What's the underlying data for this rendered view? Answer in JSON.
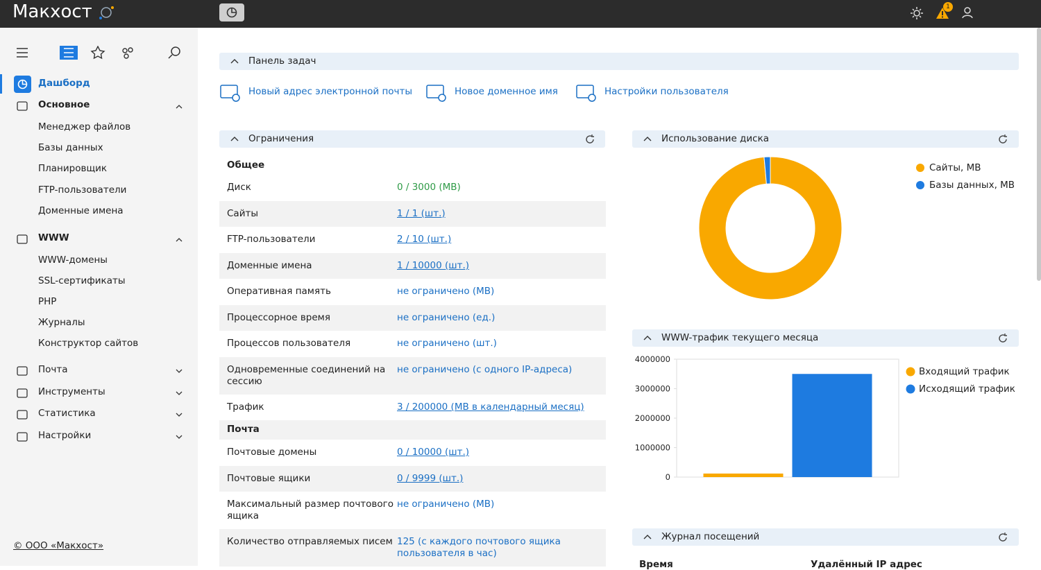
{
  "header": {
    "logo": "Макхост",
    "badge": 1
  },
  "sidebar": {
    "active": "Дашборд",
    "sections": [
      {
        "title": "Основное",
        "items": [
          "Менеджер файлов",
          "Базы данных",
          "Планировщик",
          "FTP-пользователи",
          "Доменные имена"
        ]
      },
      {
        "title": "WWW",
        "items": [
          "WWW-домены",
          "SSL-сертификаты",
          "PHP",
          "Журналы",
          "Конструктор сайтов"
        ]
      }
    ],
    "collapsed": [
      "Почта",
      "Инструменты",
      "Статистика",
      "Настройки"
    ],
    "footer": "© ООО «Макхост»"
  },
  "tasks": {
    "title": "Панель задач",
    "links": [
      "Новый адрес электронной почты",
      "Новое доменное имя",
      "Настройки пользователя"
    ]
  },
  "limits": {
    "title": "Ограничения",
    "value_color": "#1a6fc4",
    "groups": [
      {
        "title": "Общее",
        "rows": [
          {
            "label": "Диск",
            "value": "0 / 3000 (MB)",
            "color": "#2e9a46"
          },
          {
            "label": "Сайты",
            "value": "1 / 1 (шт.)",
            "link": true
          },
          {
            "label": "FTP-пользователи",
            "value": "2 / 10 (шт.)",
            "link": true
          },
          {
            "label": "Доменные имена",
            "value": "1 / 10000 (шт.)",
            "link": true
          },
          {
            "label": "Оперативная память",
            "value": "не ограничено (MB)"
          },
          {
            "label": "Процессорное время",
            "value": "не ограничено (ед.)"
          },
          {
            "label": "Процессов пользователя",
            "value": "не ограничено (шт.)"
          },
          {
            "label": "Одновременные соединений на сессию",
            "value": "не ограничено (с одного IP-адреса)"
          },
          {
            "label": "Трафик",
            "value": "3 / 200000 (MB в календарный месяц)",
            "link": true
          }
        ]
      },
      {
        "title": "Почта",
        "rows": [
          {
            "label": "Почтовые домены",
            "value": "0 / 10000 (шт.)",
            "link": true
          },
          {
            "label": "Почтовые ящики",
            "value": "0 / 9999 (шт.)",
            "link": true
          },
          {
            "label": "Максимальный размер почтового ящика",
            "value": "не ограничено (MB)"
          },
          {
            "label": "Количество отправляемых писем",
            "value": "125 (с каждого почтового ящика пользователя в час)"
          }
        ]
      }
    ]
  },
  "chart_data": [
    {
      "type": "pie",
      "donut": true,
      "title": "Использование диска",
      "categories": [
        "Сайты, MB",
        "Базы данных, MB"
      ],
      "values": [
        98.6,
        1.4
      ],
      "colors": [
        "#f9a800",
        "#1e7be0"
      ],
      "legend": "right"
    },
    {
      "type": "bar",
      "title": "WWW-трафик текущего месяца",
      "categories": [
        null
      ],
      "series": [
        {
          "name": "Входящий трафик",
          "color": "#f9a800",
          "values": [
            120000
          ]
        },
        {
          "name": "Исходящий трафик",
          "color": "#1e7be0",
          "values": [
            3500000
          ]
        }
      ],
      "ylim": [
        0,
        4000000
      ],
      "yticks": [
        0,
        1000000,
        2000000,
        3000000,
        4000000
      ],
      "grid": false,
      "legend": "right"
    }
  ],
  "visits": {
    "title": "Журнал посещений",
    "columns": [
      "Время",
      "Удалённый IP адрес"
    ]
  }
}
